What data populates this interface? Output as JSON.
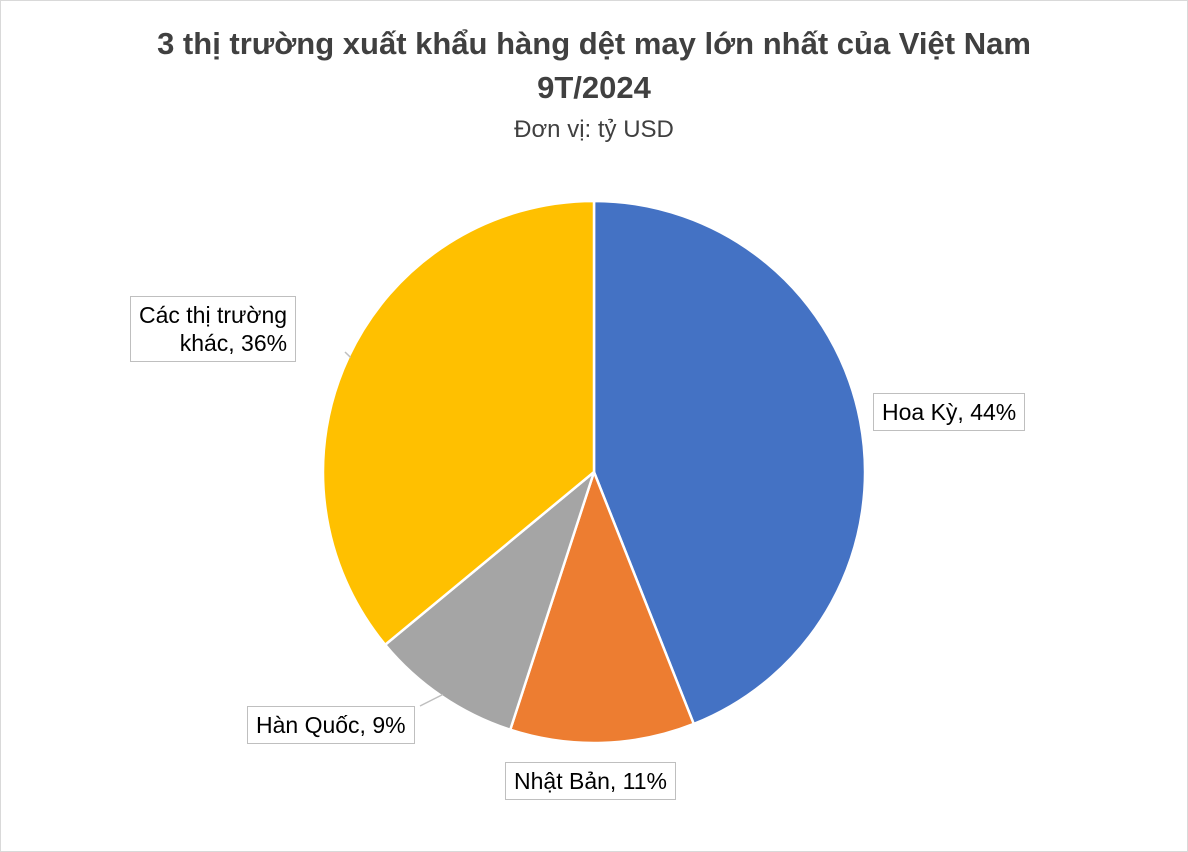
{
  "chart_data": {
    "type": "pie",
    "title": "3 thị trường xuất khẩu hàng dệt may lớn nhất của Việt Nam 9T/2024",
    "title_line1": "3 thị trường xuất khẩu hàng dệt may lớn nhất của Việt Nam",
    "title_line2": "9T/2024",
    "subtitle": "Đơn vị: tỷ USD",
    "slices": [
      {
        "name": "Hoa Kỳ",
        "value": 44,
        "color": "#4472C4",
        "label": "Hoa Kỳ, 44%"
      },
      {
        "name": "Nhật Bản",
        "value": 11,
        "color": "#ED7D31",
        "label": "Nhật Bản, 11%"
      },
      {
        "name": "Hàn Quốc",
        "value": 9,
        "color": "#A5A5A5",
        "label": "Hàn Quốc, 9%"
      },
      {
        "name": "Các thị trường khác",
        "value": 36,
        "color": "#FFC000",
        "label_line1": "Các thị trường",
        "label_line2": "khác, 36%"
      }
    ],
    "start_angle_deg": 0,
    "direction": "clockwise",
    "legend": "none"
  }
}
